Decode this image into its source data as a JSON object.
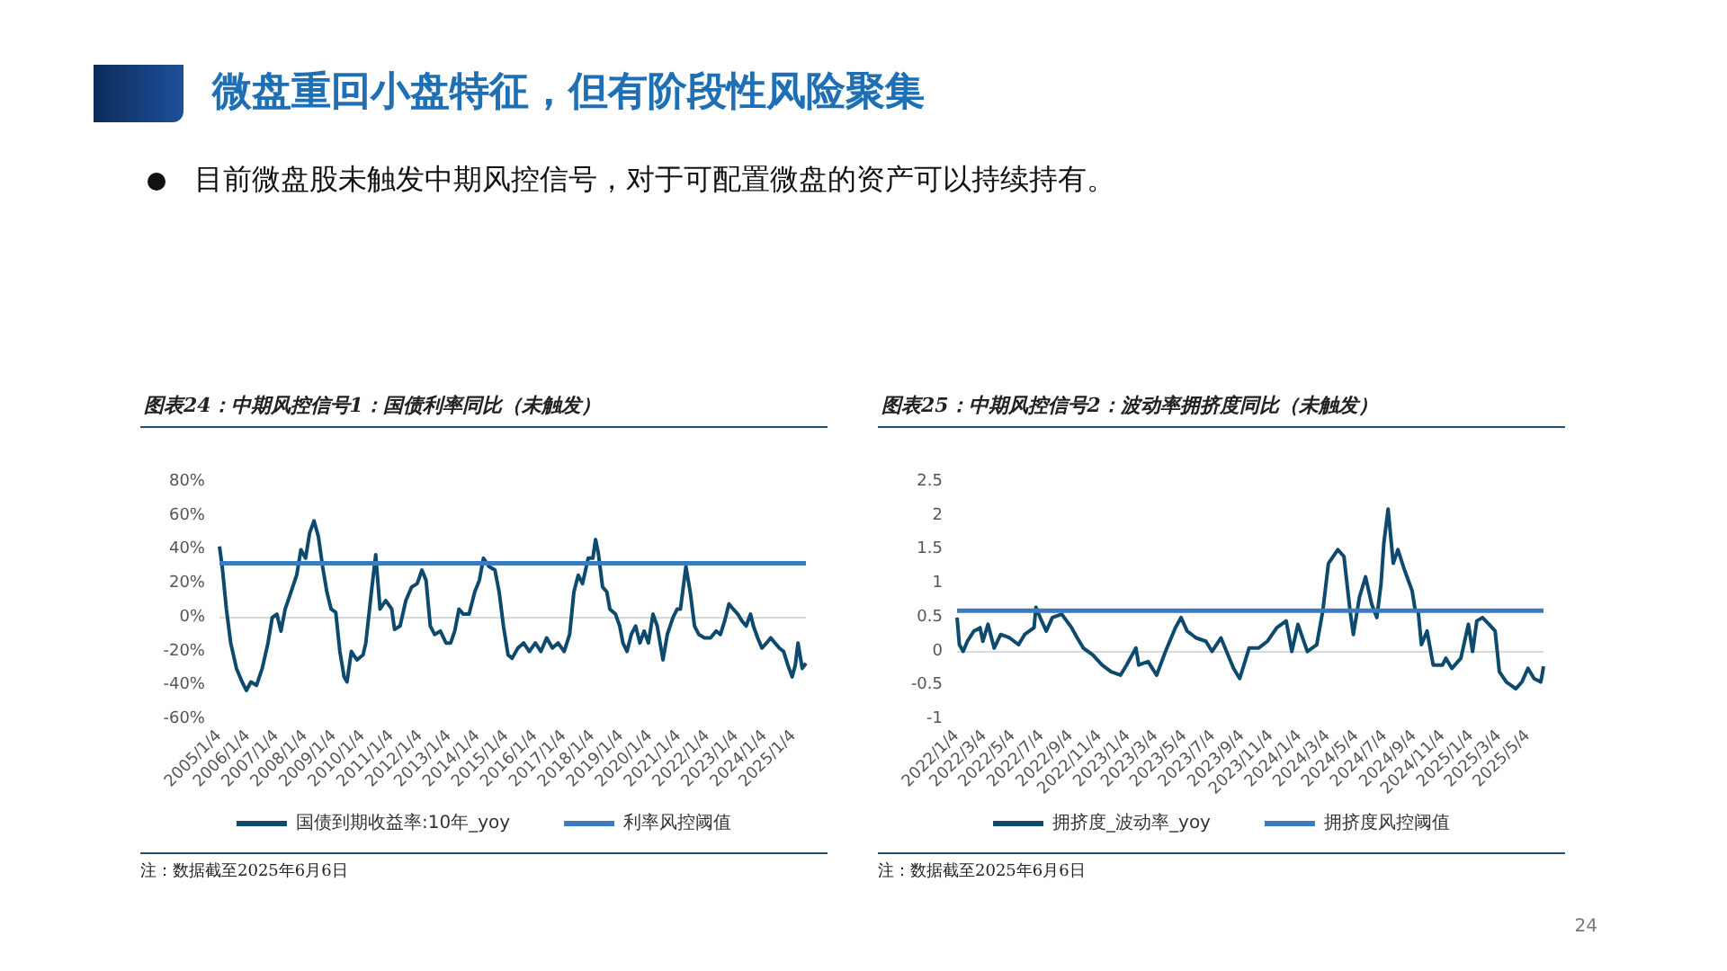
{
  "chart_data": [
    {
      "type": "other",
      "title": "微盘重回小盘特征，但有阶段性风险聚集",
      "annotations": [
        "目前微盘股未触发中期风控信号，对于可配置微盘的资产可以持续持有。",
        "24"
      ]
    },
    {
      "type": "line",
      "title": "图表24：中期风控信号1：国债利率同比（未触发）",
      "annotations": [
        "注：数据截至2025年6月6日"
      ],
      "legend": "bottom",
      "grid": false,
      "marker": "none",
      "line_style": "solid",
      "xlim": [
        "2005-01-04",
        "2025-06-06"
      ],
      "xticks": [
        {
          "value": "2005-01-04",
          "label": "2005/1/4"
        },
        {
          "value": "2006-01-04",
          "label": "2006/1/4"
        },
        {
          "value": "2007-01-04",
          "label": "2007/1/4"
        },
        {
          "value": "2008-01-04",
          "label": "2008/1/4"
        },
        {
          "value": "2009-01-04",
          "label": "2009/1/4"
        },
        {
          "value": "2010-01-04",
          "label": "2010/1/4"
        },
        {
          "value": "2011-01-04",
          "label": "2011/1/4"
        },
        {
          "value": "2012-01-04",
          "label": "2012/1/4"
        },
        {
          "value": "2013-01-04",
          "label": "2013/1/4"
        },
        {
          "value": "2014-01-04",
          "label": "2014/1/4"
        },
        {
          "value": "2015-01-04",
          "label": "2015/1/4"
        },
        {
          "value": "2016-01-04",
          "label": "2016/1/4"
        },
        {
          "value": "2017-01-04",
          "label": "2017/1/4"
        },
        {
          "value": "2018-01-04",
          "label": "2018/1/4"
        },
        {
          "value": "2019-01-04",
          "label": "2019/1/4"
        },
        {
          "value": "2020-01-04",
          "label": "2020/1/4"
        },
        {
          "value": "2021-01-04",
          "label": "2021/1/4"
        },
        {
          "value": "2022-01-04",
          "label": "2022/1/4"
        },
        {
          "value": "2023-01-04",
          "label": "2023/1/4"
        },
        {
          "value": "2024-01-04",
          "label": "2024/1/4"
        },
        {
          "value": "2025-01-04",
          "label": "2025/1/4"
        }
      ],
      "ylim": [
        -60,
        80
      ],
      "yticks": [
        {
          "value": -60,
          "label": "-60%"
        },
        {
          "value": -40,
          "label": "-40%"
        },
        {
          "value": -20,
          "label": "-20%"
        },
        {
          "value": 0,
          "label": "0%"
        },
        {
          "value": 20,
          "label": "20%"
        },
        {
          "value": 40,
          "label": "40%"
        },
        {
          "value": 60,
          "label": "60%"
        },
        {
          "value": 80,
          "label": "80%"
        }
      ],
      "ref_lines": [
        {
          "axis": "y",
          "value": 0,
          "color": "#d9d9d9"
        }
      ],
      "series": [
        {
          "name": "国债到期收益率:10年_yoy",
          "color": "#0e4a6e",
          "x": [
            "2005-01-04",
            "2005-02-08",
            "2005-04-02",
            "2005-05-27",
            "2005-08-08",
            "2005-10-19",
            "2005-12-12",
            "2006-02-08",
            "2006-04-20",
            "2006-07-02",
            "2006-09-13",
            "2006-11-06",
            "2007-01-04",
            "2007-02-25",
            "2007-04-20",
            "2007-07-02",
            "2007-09-13",
            "2007-11-06",
            "2008-01-04",
            "2008-02-25",
            "2008-04-20",
            "2008-06-14",
            "2008-08-08",
            "2008-10-01",
            "2008-11-24",
            "2009-01-22",
            "2009-03-15",
            "2009-05-08",
            "2009-06-14",
            "2009-08-08",
            "2009-10-19",
            "2010-01-04",
            "2010-02-08",
            "2010-04-20",
            "2010-06-14",
            "2010-08-08",
            "2010-10-19",
            "2011-01-04",
            "2011-02-08",
            "2011-04-20",
            "2011-07-02",
            "2011-09-13",
            "2011-11-24",
            "2012-01-22",
            "2012-03-15",
            "2012-05-08",
            "2012-07-02",
            "2012-09-13",
            "2012-11-24",
            "2013-01-22",
            "2013-03-15",
            "2013-05-08",
            "2013-07-02",
            "2013-09-13",
            "2013-11-24",
            "2014-01-22",
            "2014-03-15",
            "2014-05-27",
            "2014-08-08",
            "2014-10-01",
            "2014-11-24",
            "2015-01-22",
            "2015-03-15",
            "2015-05-27",
            "2015-08-08",
            "2015-10-19",
            "2016-01-04",
            "2016-03-15",
            "2016-05-27",
            "2016-08-08",
            "2016-10-19",
            "2017-01-04",
            "2017-03-15",
            "2017-05-08",
            "2017-07-02",
            "2017-08-26",
            "2017-11-06",
            "2018-01-04",
            "2018-02-08",
            "2018-03-15",
            "2018-05-08",
            "2018-07-02",
            "2018-08-08",
            "2018-10-19",
            "2018-12-12",
            "2019-01-22",
            "2019-03-15",
            "2019-05-08",
            "2019-07-02",
            "2019-08-26",
            "2019-10-19",
            "2019-12-12",
            "2020-02-08",
            "2020-04-02",
            "2020-06-14",
            "2020-08-08",
            "2020-10-19",
            "2020-12-12",
            "2021-01-22",
            "2021-04-02",
            "2021-05-27",
            "2021-07-20",
            "2021-09-13",
            "2021-11-24",
            "2022-02-08",
            "2022-04-20",
            "2022-06-14",
            "2022-08-08",
            "2022-10-01",
            "2022-11-24",
            "2023-01-22",
            "2023-03-15",
            "2023-05-08",
            "2023-07-02",
            "2023-08-08",
            "2023-10-01",
            "2023-11-24",
            "2024-01-22",
            "2024-03-15",
            "2024-05-08",
            "2024-07-02",
            "2024-08-26",
            "2024-10-19",
            "2024-12-12",
            "2025-01-22",
            "2025-02-25",
            "2025-04-20",
            "2025-06-06"
          ],
          "values": [
            42,
            30,
            5,
            -15,
            -30,
            -38,
            -43,
            -38,
            -40,
            -30,
            -15,
            0,
            2,
            -8,
            5,
            15,
            25,
            40,
            35,
            50,
            57,
            48,
            30,
            15,
            5,
            3,
            -20,
            -35,
            -38,
            -20,
            -25,
            -22,
            -15,
            15,
            37,
            5,
            10,
            5,
            -7,
            -5,
            10,
            18,
            20,
            28,
            22,
            -5,
            -10,
            -8,
            -15,
            -15,
            -8,
            5,
            2,
            2,
            15,
            22,
            35,
            30,
            28,
            15,
            -5,
            -22,
            -24,
            -18,
            -15,
            -20,
            -15,
            -20,
            -12,
            -18,
            -15,
            -20,
            -10,
            15,
            25,
            20,
            35,
            35,
            46,
            38,
            18,
            15,
            5,
            2,
            -5,
            -15,
            -20,
            -10,
            -5,
            -15,
            -8,
            -15,
            2,
            -5,
            -25,
            -10,
            0,
            5,
            5,
            30,
            15,
            -5,
            -10,
            -12,
            -12,
            -8,
            -10,
            -2,
            8,
            5,
            2,
            -2,
            -5,
            2,
            -5,
            -12,
            -18,
            -15,
            -12,
            -15,
            -18,
            -20,
            -28,
            -35,
            -28,
            -15,
            -30,
            -27
          ]
        },
        {
          "name": "利率风控阈值",
          "color": "#3b7bbf",
          "x": [
            "2005-01-04",
            "2025-06-06"
          ],
          "values": [
            32,
            32
          ]
        }
      ]
    },
    {
      "type": "line",
      "title": "图表25：中期风控信号2：波动率拥挤度同比（未触发）",
      "annotations": [
        "注：数据截至2025年6月6日"
      ],
      "legend": "bottom",
      "grid": false,
      "marker": "none",
      "line_style": "solid",
      "xlim": [
        "2022-01-04",
        "2025-06-06"
      ],
      "xticks": [
        {
          "value": "2022-01-04",
          "label": "2022/1/4"
        },
        {
          "value": "2022-03-04",
          "label": "2022/3/4"
        },
        {
          "value": "2022-05-04",
          "label": "2022/5/4"
        },
        {
          "value": "2022-07-04",
          "label": "2022/7/4"
        },
        {
          "value": "2022-09-04",
          "label": "2022/9/4"
        },
        {
          "value": "2022-11-04",
          "label": "2022/11/4"
        },
        {
          "value": "2023-01-04",
          "label": "2023/1/4"
        },
        {
          "value": "2023-03-04",
          "label": "2023/3/4"
        },
        {
          "value": "2023-05-04",
          "label": "2023/5/4"
        },
        {
          "value": "2023-07-04",
          "label": "2023/7/4"
        },
        {
          "value": "2023-09-04",
          "label": "2023/9/4"
        },
        {
          "value": "2023-11-04",
          "label": "2023/11/4"
        },
        {
          "value": "2024-01-04",
          "label": "2024/1/4"
        },
        {
          "value": "2024-03-04",
          "label": "2024/3/4"
        },
        {
          "value": "2024-05-04",
          "label": "2024/5/4"
        },
        {
          "value": "2024-07-04",
          "label": "2024/7/4"
        },
        {
          "value": "2024-09-04",
          "label": "2024/9/4"
        },
        {
          "value": "2024-11-04",
          "label": "2024/11/4"
        },
        {
          "value": "2025-01-04",
          "label": "2025/1/4"
        },
        {
          "value": "2025-03-04",
          "label": "2025/3/4"
        },
        {
          "value": "2025-05-04",
          "label": "2025/5/4"
        }
      ],
      "ylim": [
        -1,
        2.5
      ],
      "yticks": [
        -1,
        -0.5,
        0,
        0.5,
        1,
        1.5,
        2,
        2.5
      ],
      "ref_lines": [
        {
          "axis": "y",
          "value": 0,
          "color": "#d9d9d9"
        }
      ],
      "series": [
        {
          "name": "拥挤度_波动率_yoy",
          "color": "#0e4a6e",
          "x": [
            "2022-01-04",
            "2022-01-09",
            "2022-01-17",
            "2022-01-26",
            "2022-02-09",
            "2022-02-22",
            "2022-02-28",
            "2022-03-11",
            "2022-03-24",
            "2022-04-07",
            "2022-04-26",
            "2022-05-15",
            "2022-05-28",
            "2022-06-17",
            "2022-06-21",
            "2022-06-30",
            "2022-07-13",
            "2022-07-26",
            "2022-08-15",
            "2022-09-05",
            "2022-09-17",
            "2022-09-30",
            "2022-10-20",
            "2022-11-09",
            "2022-11-28",
            "2022-12-18",
            "2022-12-31",
            "2023-01-20",
            "2023-01-26",
            "2023-02-15",
            "2023-03-05",
            "2023-03-24",
            "2023-04-14",
            "2023-04-26",
            "2023-05-09",
            "2023-05-28",
            "2023-06-18",
            "2023-07-01",
            "2023-07-20",
            "2023-08-16",
            "2023-08-29",
            "2023-09-18",
            "2023-10-08",
            "2023-10-27",
            "2023-11-16",
            "2023-12-06",
            "2023-12-18",
            "2023-12-31",
            "2024-01-20",
            "2024-02-09",
            "2024-02-22",
            "2024-03-05",
            "2024-03-25",
            "2024-04-07",
            "2024-04-20",
            "2024-04-27",
            "2024-05-10",
            "2024-05-23",
            "2024-06-05",
            "2024-06-16",
            "2024-06-25",
            "2024-07-01",
            "2024-07-10",
            "2024-07-21",
            "2024-07-31",
            "2024-08-14",
            "2024-08-30",
            "2024-09-06",
            "2024-09-12",
            "2024-09-19",
            "2024-10-01",
            "2024-10-14",
            "2024-11-03",
            "2024-11-10",
            "2024-11-23",
            "2024-12-12",
            "2024-12-28",
            "2025-01-06",
            "2025-01-15",
            "2025-01-27",
            "2025-02-10",
            "2025-02-23",
            "2025-03-04",
            "2025-03-19",
            "2025-04-08",
            "2025-04-21",
            "2025-05-04",
            "2025-05-17",
            "2025-05-31",
            "2025-06-03",
            "2025-06-06"
          ],
          "values": [
            0.5,
            0.1,
            0.0,
            0.15,
            0.3,
            0.35,
            0.15,
            0.4,
            0.05,
            0.25,
            0.2,
            0.1,
            0.25,
            0.35,
            0.65,
            0.5,
            0.3,
            0.5,
            0.55,
            0.35,
            0.2,
            0.05,
            -0.05,
            -0.2,
            -0.3,
            -0.35,
            -0.2,
            0.05,
            -0.2,
            -0.15,
            -0.35,
            0.0,
            0.35,
            0.5,
            0.3,
            0.2,
            0.15,
            0.0,
            0.2,
            -0.25,
            -0.4,
            0.05,
            0.05,
            0.15,
            0.35,
            0.45,
            0.0,
            0.4,
            0.0,
            0.1,
            0.6,
            1.3,
            1.5,
            1.4,
            0.6,
            0.25,
            0.8,
            1.1,
            0.7,
            0.5,
            1.0,
            1.6,
            2.1,
            1.3,
            1.5,
            1.2,
            0.9,
            0.6,
            0.6,
            0.1,
            0.3,
            -0.2,
            -0.2,
            -0.1,
            -0.25,
            -0.1,
            0.4,
            0.0,
            0.45,
            0.5,
            0.4,
            0.3,
            -0.3,
            -0.45,
            -0.55,
            -0.45,
            -0.25,
            -0.4,
            -0.45,
            -0.35,
            -0.22
          ]
        },
        {
          "name": "拥挤度风控阈值",
          "color": "#3b7bbf",
          "x": [
            "2022-01-04",
            "2025-06-06"
          ],
          "values": [
            0.6,
            0.6
          ]
        }
      ]
    }
  ]
}
